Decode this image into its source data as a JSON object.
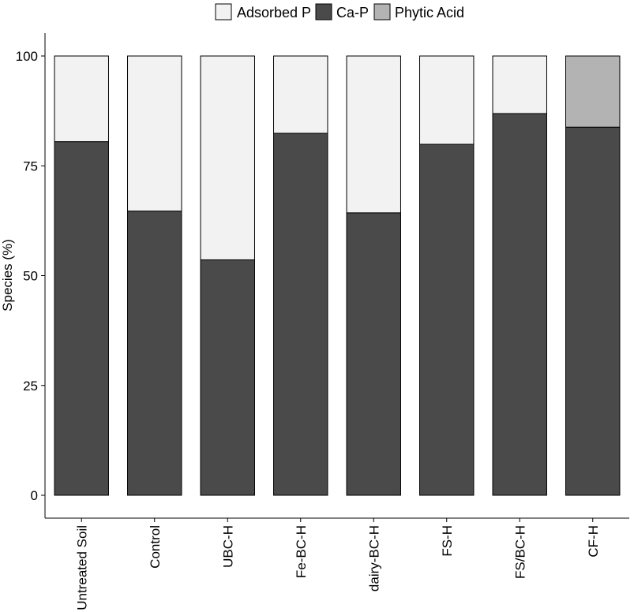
{
  "chart_data": {
    "type": "bar",
    "stacked": true,
    "title": "",
    "xlabel": "",
    "ylabel": "Species (%)",
    "ylim": [
      0,
      100
    ],
    "yticks": [
      0,
      25,
      50,
      75,
      100
    ],
    "grid": false,
    "legend_position": "top",
    "categories": [
      "Untreated Soil",
      "Control",
      "UBC-H",
      "Fe-BC-H",
      "dairy-BC-H",
      "FS-H",
      "FS/BC-H",
      "CF-H"
    ],
    "series": [
      {
        "name": "Ca-P",
        "color": "#4a4a4a",
        "values": [
          80.5,
          64.7,
          53.6,
          82.4,
          64.3,
          79.9,
          86.9,
          83.8
        ]
      },
      {
        "name": "Adsorbed P",
        "color": "#f2f2f2",
        "values": [
          19.5,
          35.3,
          46.4,
          17.6,
          35.7,
          20.1,
          13.1,
          0
        ]
      },
      {
        "name": "Phytic Acid",
        "color": "#b3b3b3",
        "values": [
          0,
          0,
          0,
          0,
          0,
          0,
          0,
          16.2
        ]
      }
    ],
    "legend": [
      {
        "name": "Adsorbed P",
        "color": "#f2f2f2"
      },
      {
        "name": "Ca-P",
        "color": "#4a4a4a"
      },
      {
        "name": "Phytic Acid",
        "color": "#b3b3b3"
      }
    ]
  }
}
